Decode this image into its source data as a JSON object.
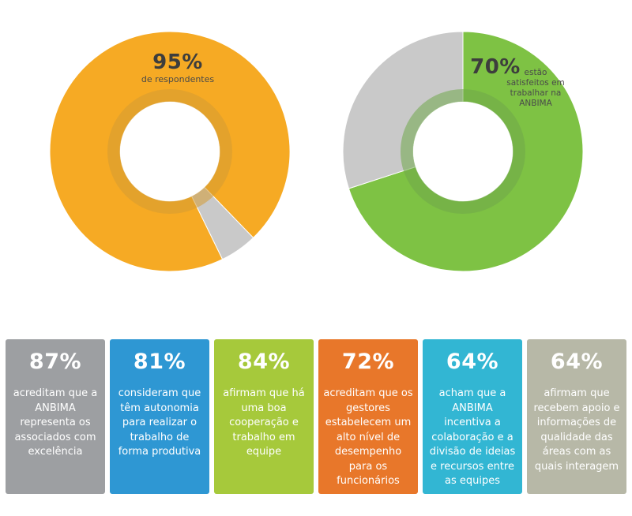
{
  "colors": {
    "orange": "#f6aa24",
    "green": "#7ec244",
    "gray": "#c9c9c9",
    "inner_ring_orange": "#d49a33",
    "inner_ring_green": "#70a84a"
  },
  "chart_data": [
    {
      "type": "pie",
      "style": "donut",
      "values": [
        95,
        5
      ],
      "value_label": "95%",
      "description": "de respondentes"
    },
    {
      "type": "pie",
      "style": "donut",
      "values": [
        70,
        30
      ],
      "value_label": "70%",
      "description": "estão satisfeitos em trabalhar na ANBIMA"
    }
  ],
  "cards": [
    {
      "pct": "87%",
      "text": "acreditam que a ANBIMA representa os associados com excelência",
      "color": "#9d9fa2"
    },
    {
      "pct": "81%",
      "text": "consideram que têm autonomia para realizar o trabalho de forma produtiva",
      "color": "#2e97d3"
    },
    {
      "pct": "84%",
      "text": "afirmam que há uma boa cooperação e trabalho em equipe",
      "color": "#a6c93b"
    },
    {
      "pct": "72%",
      "text": "acreditam que os gestores estabelecem um alto nível de desempenho para os funcionários",
      "color": "#e8772a"
    },
    {
      "pct": "64%",
      "text": "acham que a ANBIMA incentiva a colaboração e a divisão de ideias e recursos entre as equipes",
      "color": "#32b6d3"
    },
    {
      "pct": "64%",
      "text": "afirmam que recebem apoio e informações de qualidade das áreas com as quais interagem",
      "color": "#b7b8a7"
    }
  ]
}
